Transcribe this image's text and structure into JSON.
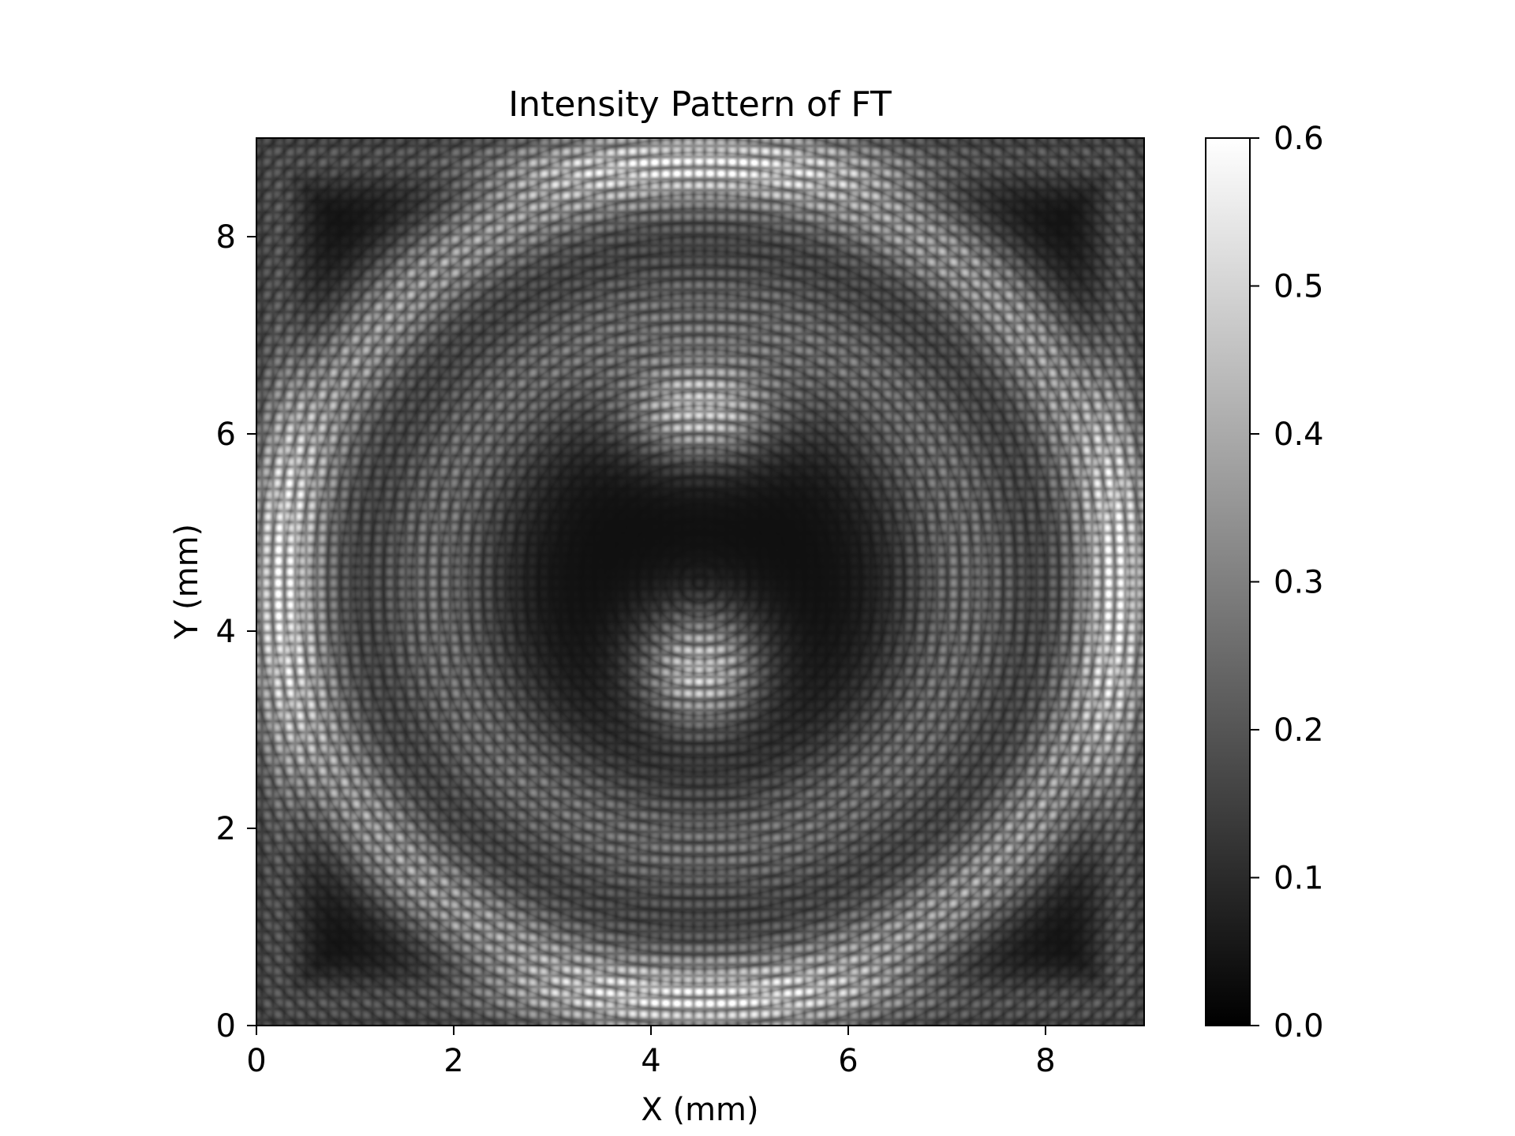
{
  "chart_data": {
    "type": "heatmap",
    "title": "Intensity Pattern of FT",
    "xlabel": "X (mm)",
    "ylabel": "Y (mm)",
    "xlim": [
      0,
      9
    ],
    "ylim": [
      0,
      9
    ],
    "x_ticks": [
      0,
      2,
      4,
      6,
      8
    ],
    "y_ticks": [
      0,
      2,
      4,
      6,
      8
    ],
    "x_tick_labels": [
      "0",
      "2",
      "4",
      "6",
      "8"
    ],
    "y_tick_labels": [
      "0",
      "2",
      "4",
      "6",
      "8"
    ],
    "colormap": "gray",
    "grid": false,
    "colorbar": {
      "range": [
        0.0,
        0.6
      ],
      "ticks": [
        0.0,
        0.1,
        0.2,
        0.3,
        0.4,
        0.5,
        0.6
      ],
      "tick_labels": [
        "0.0",
        "0.1",
        "0.2",
        "0.3",
        "0.4",
        "0.5",
        "0.6"
      ],
      "low_color": "#000000",
      "high_color": "#ffffff"
    },
    "pattern": {
      "outer_ring": {
        "center": [
          4.5,
          4.5
        ],
        "radius": 4.15,
        "intensity": 0.42
      },
      "inner_ring": {
        "center": [
          4.5,
          4.5
        ],
        "radius": 2.7,
        "intensity": 0.3
      },
      "upper_blob": {
        "center": [
          4.5,
          6.2
        ],
        "intensity": 0.5
      },
      "center_blob": {
        "center": [
          4.5,
          3.6
        ],
        "intensity": 0.55
      }
    }
  }
}
